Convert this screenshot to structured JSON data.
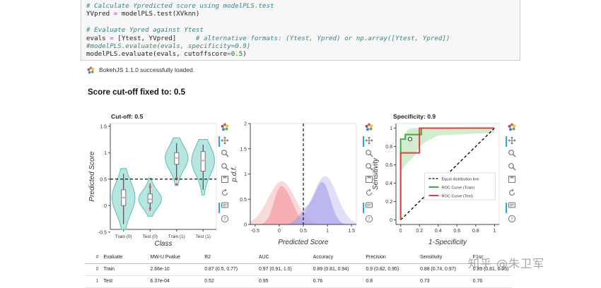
{
  "code": {
    "lines": [
      {
        "parts": [
          {
            "t": "# Calculate Ypredicted score using modelPLS.test",
            "c": "cmt"
          }
        ]
      },
      {
        "parts": [
          {
            "t": "YVpred ",
            "c": ""
          },
          {
            "t": "=",
            "c": "op"
          },
          {
            "t": " modelPLS.test(XVknn)",
            "c": ""
          }
        ]
      },
      {
        "parts": [
          {
            "t": "",
            "c": ""
          }
        ]
      },
      {
        "parts": [
          {
            "t": "# Evaluate Ypred against Ytest",
            "c": "cmt"
          }
        ]
      },
      {
        "parts": [
          {
            "t": "evals ",
            "c": ""
          },
          {
            "t": "=",
            "c": "op"
          },
          {
            "t": " [Ytest, YVpred]     ",
            "c": ""
          },
          {
            "t": "# alternative formats: (Ytest, Ypred) or np.array([Ytest, Ypred])",
            "c": "cmt"
          }
        ]
      },
      {
        "parts": [
          {
            "t": "#modelPLS.evaluate(evals, specificity=0.9)",
            "c": "cmt"
          }
        ]
      },
      {
        "parts": [
          {
            "t": "modelPLS.evaluate(evals, cutoffscore",
            "c": ""
          },
          {
            "t": "=",
            "c": "op"
          },
          {
            "t": "0.5",
            "c": "num"
          },
          {
            "t": ")",
            "c": ""
          }
        ]
      }
    ]
  },
  "bokeh": {
    "message": "BokehJS 1.1.0 successfully loaded."
  },
  "page_title": "Score cut-off fixed to: 0.5",
  "chart_data": [
    {
      "type": "violin",
      "title": "Cut-off: 0.5",
      "xlabel": "Class",
      "ylabel": "Predicted Score",
      "categories": [
        "Train (0)",
        "Test (0)",
        "Train (1)",
        "Test (1)"
      ],
      "ylim": [
        -0.45,
        1.55
      ],
      "yticks": [
        "1.5",
        "1",
        "0.5",
        "0",
        "-0.5"
      ],
      "ytick_values": [
        1.5,
        1,
        0.5,
        0,
        -0.5
      ],
      "cutoff_line": 0.5,
      "box": [
        {
          "q1": 0.0,
          "median": 0.15,
          "q3": 0.3,
          "min": -0.35,
          "max": 0.6
        },
        {
          "q1": 0.05,
          "median": 0.12,
          "q3": 0.22,
          "min": -0.1,
          "max": 0.42
        },
        {
          "q1": 0.78,
          "median": 0.9,
          "q3": 1.0,
          "min": 0.48,
          "max": 1.18
        },
        {
          "q1": 0.65,
          "median": 0.85,
          "q3": 1.02,
          "min": 0.3,
          "max": 1.15
        }
      ],
      "outliers": [
        {
          "cat": 1,
          "y": 0.35
        },
        {
          "cat": 1,
          "y": -0.05
        },
        {
          "cat": 2,
          "y": 0.52
        },
        {
          "cat": 2,
          "y": 0.4
        }
      ],
      "colors": {
        "fill": "#9fdcd5",
        "outline": "#5fbdb3",
        "outlier": "#e05b5b",
        "box": "#e7a3a3"
      }
    },
    {
      "type": "area",
      "title": "",
      "xlabel": "Predicted Score",
      "ylabel": "p.d.f.",
      "xlim": [
        -0.6,
        1.6
      ],
      "ylim": [
        0,
        2
      ],
      "xticks": [
        "-0.5",
        "0",
        "0.5",
        "1",
        "1.5"
      ],
      "xtick_values": [
        -0.5,
        0,
        0.5,
        1,
        1.5
      ],
      "yticks": [
        "2",
        "1.5",
        "1",
        "0.5",
        "0"
      ],
      "ytick_values": [
        2,
        1.5,
        1,
        0.5,
        0
      ],
      "cutoff_line": 0.5,
      "series": [
        {
          "color": "#f6b9bd",
          "opacity": 0.55,
          "mixture": [
            {
              "mu": 0.05,
              "sd": 0.28,
              "w": 0.6
            }
          ]
        },
        {
          "color": "#f48b96",
          "opacity": 0.55,
          "mixture": [
            {
              "mu": 0.0,
              "sd": 0.13,
              "w": 0.2
            },
            {
              "mu": 0.22,
              "sd": 0.14,
              "w": 0.14
            }
          ]
        },
        {
          "color": "#c7c3f2",
          "opacity": 0.55,
          "mixture": [
            {
              "mu": 0.95,
              "sd": 0.25,
              "w": 0.6
            }
          ]
        },
        {
          "color": "#9f97ea",
          "opacity": 0.55,
          "mixture": [
            {
              "mu": 0.9,
              "sd": 0.16,
              "w": 0.33
            },
            {
              "mu": 0.55,
              "sd": 0.15,
              "w": 0.1
            }
          ]
        }
      ]
    },
    {
      "type": "line",
      "title": "Specificity: 0.9",
      "xlabel": "1-Specificity",
      "ylabel": "Sensitivity",
      "xlim": [
        -0.05,
        1.05
      ],
      "ylim": [
        -0.05,
        1.05
      ],
      "xticks": [
        "0",
        "0.2",
        "0.4",
        "0.6",
        "0.8",
        "1"
      ],
      "xtick_values": [
        0,
        0.2,
        0.4,
        0.6,
        0.8,
        1
      ],
      "yticks": [
        "1",
        "0.8",
        "0.6",
        "0.4",
        "0.2",
        "0"
      ],
      "ytick_values": [
        1,
        0.8,
        0.6,
        0.4,
        0.2,
        0
      ],
      "band": {
        "color": "#c9eac6",
        "upper": [
          [
            0,
            0.82
          ],
          [
            0.05,
            0.95
          ],
          [
            0.1,
            1
          ],
          [
            1,
            1
          ]
        ],
        "lower": [
          [
            0,
            0.52
          ],
          [
            0.05,
            0.6
          ],
          [
            0.15,
            0.7
          ],
          [
            0.2,
            0.8
          ],
          [
            0.3,
            0.87
          ],
          [
            0.4,
            0.92
          ],
          [
            1,
            0.95
          ]
        ]
      },
      "series": [
        {
          "name": "Equal distribution line",
          "color": "#000000",
          "dashed": true,
          "points": [
            [
              0,
              0
            ],
            [
              1,
              1
            ]
          ]
        },
        {
          "name": "ROC Curve (Train)",
          "color": "#44aa44",
          "dashed": false,
          "points": [
            [
              0,
              0
            ],
            [
              0,
              0.88
            ],
            [
              0.05,
              0.88
            ],
            [
              0.05,
              0.93
            ],
            [
              0.22,
              0.93
            ],
            [
              0.22,
              1
            ],
            [
              1,
              1
            ]
          ]
        },
        {
          "name": "ROC Curve (Test)",
          "color": "#e03f3f",
          "dashed": false,
          "points": [
            [
              0,
              0
            ],
            [
              0,
              0.73
            ],
            [
              0.2,
              0.73
            ],
            [
              0.2,
              1
            ],
            [
              1,
              1
            ]
          ]
        }
      ],
      "marker": {
        "x": 0.1,
        "y": 0.88
      }
    }
  ],
  "table": {
    "columns": [
      "#",
      "Evaluate",
      "MW-U Pvalue",
      "R2",
      "AUC",
      "Accuracy",
      "Precision",
      "Sensitivity",
      "F1sc"
    ],
    "rows": [
      [
        "0",
        "Train",
        "2.66e-10",
        "0.87 (0.5, 0.77)",
        "0.97 (0.91, 1.0)",
        "0.89 (0.81, 0.94)",
        "0.9 (0.82, 0.95)",
        "0.88 (0.74, 0.97)",
        "0.89 (0.81, 0.95)"
      ],
      [
        "1",
        "Test",
        "6.37e-04",
        "0.52",
        "0.95",
        "0.76",
        "0.8",
        "0.73",
        "0.76"
      ]
    ]
  },
  "watermark": "知乎 @朱卫军"
}
